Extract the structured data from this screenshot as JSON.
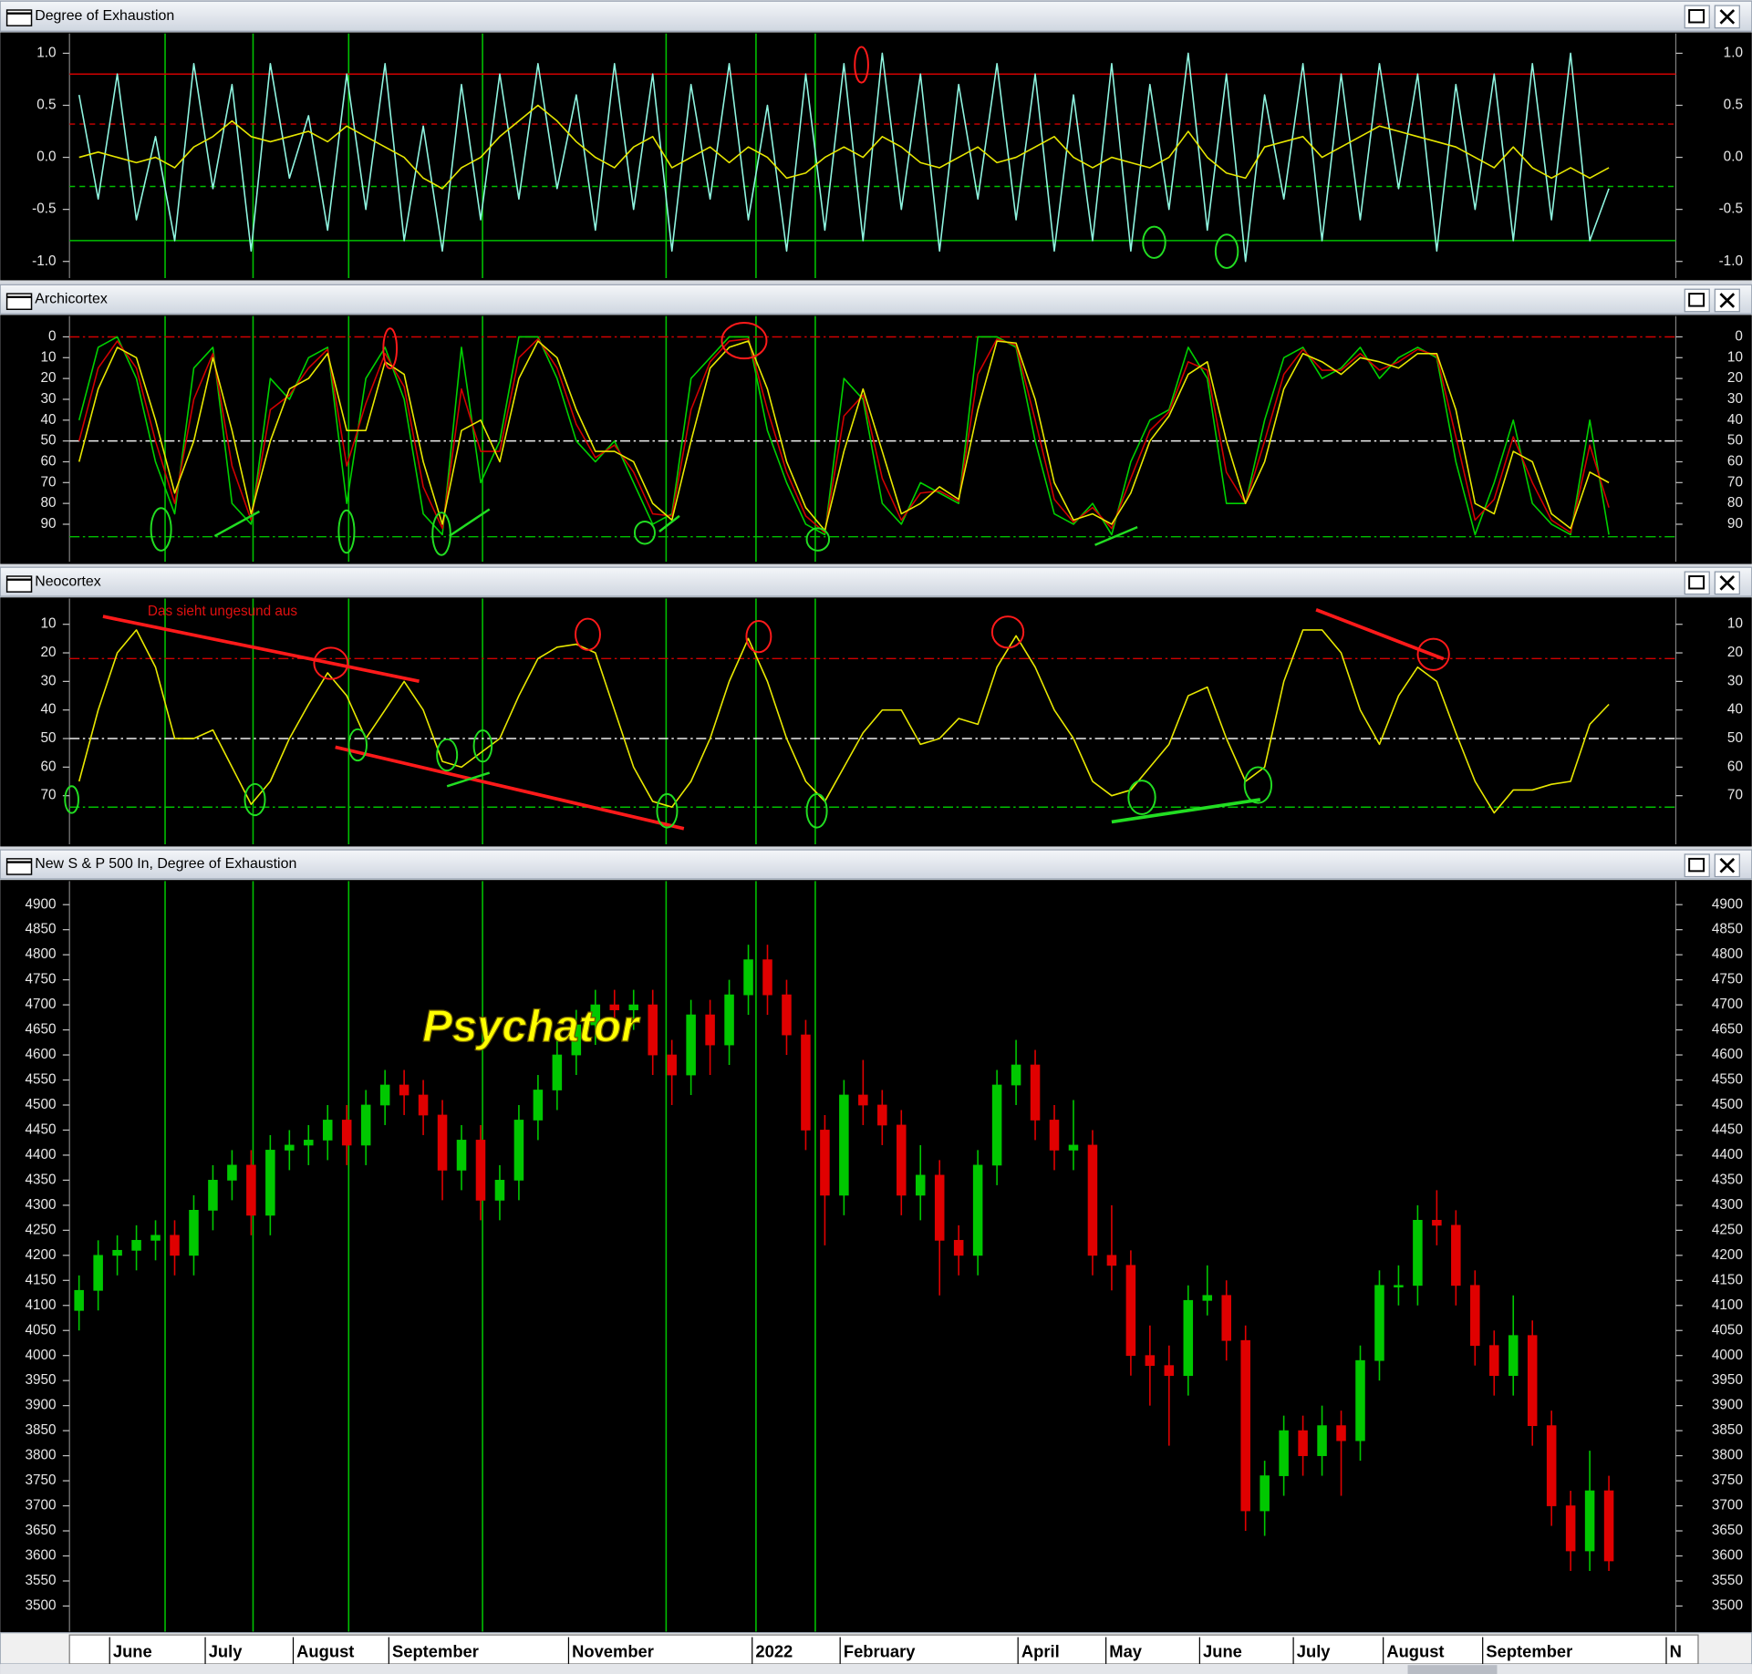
{
  "chart_data": [
    {
      "type": "line",
      "title": "Degree of Exhaustion",
      "xlim": [
        0,
        84
      ],
      "ylim": [
        -1.16,
        1.19
      ],
      "yticks": [
        {
          "value": 1,
          "label": "1.0"
        },
        0.5,
        {
          "value": 0,
          "label": "0.0"
        },
        -0.5,
        {
          "value": -1,
          "label": "-1.0"
        }
      ],
      "reference_lines": [
        {
          "value": 0.8,
          "color": "#d00000",
          "style": "solid"
        },
        {
          "value": 0.32,
          "color": "#d00000",
          "style": "dash"
        },
        {
          "value": -0.28,
          "color": "#00c000",
          "style": "dash"
        },
        {
          "value": -0.8,
          "color": "#00c000",
          "style": "solid"
        }
      ],
      "series": [
        {
          "color": "#8ff5e0",
          "values": [
            0.6,
            -0.4,
            0.8,
            -0.6,
            0.2,
            -0.8,
            0.9,
            -0.3,
            0.7,
            -0.9,
            0.9,
            -0.2,
            0.4,
            -0.7,
            0.8,
            -0.5,
            0.9,
            -0.8,
            0.3,
            -0.9,
            0.7,
            -0.6,
            0.8,
            -0.4,
            0.9,
            -0.3,
            0.6,
            -0.7,
            0.9,
            -0.5,
            0.8,
            -0.9,
            0.7,
            -0.4,
            0.9,
            -0.6,
            0.5,
            -0.9,
            0.8,
            -0.7,
            0.9,
            -0.8,
            1.0,
            -0.5,
            0.8,
            -0.9,
            0.7,
            -0.4,
            0.9,
            -0.6,
            0.8,
            -0.9,
            0.6,
            -0.8,
            0.9,
            -0.9,
            0.7,
            -0.5,
            1.0,
            -0.7,
            0.8,
            -1.0,
            0.6,
            -0.4,
            0.9,
            -0.8,
            0.8,
            -0.6,
            0.9,
            -0.3,
            0.8,
            -0.9,
            0.7,
            -0.5,
            0.8,
            -0.8,
            0.9,
            -0.6,
            1.0,
            -0.8,
            -0.3
          ]
        },
        {
          "color": "#e6e600",
          "values": [
            0.0,
            0.05,
            0.0,
            -0.05,
            0.0,
            -0.1,
            0.1,
            0.2,
            0.35,
            0.2,
            0.15,
            0.2,
            0.25,
            0.15,
            0.3,
            0.2,
            0.1,
            0.0,
            -0.2,
            -0.3,
            -0.1,
            0.0,
            0.2,
            0.35,
            0.5,
            0.35,
            0.15,
            0.0,
            -0.1,
            0.1,
            0.2,
            -0.1,
            0.0,
            0.1,
            -0.05,
            0.1,
            0.0,
            -0.2,
            -0.15,
            0.0,
            0.1,
            0.0,
            0.2,
            0.1,
            -0.05,
            -0.1,
            0.0,
            0.1,
            -0.05,
            0.0,
            0.1,
            0.2,
            0.0,
            -0.1,
            0.0,
            -0.05,
            -0.1,
            0.0,
            0.25,
            0.0,
            -0.15,
            -0.2,
            0.1,
            0.15,
            0.2,
            0.0,
            0.1,
            0.2,
            0.3,
            0.25,
            0.2,
            0.15,
            0.1,
            0.0,
            -0.1,
            0.1,
            -0.1,
            -0.2,
            -0.1,
            -0.2,
            -0.1
          ]
        }
      ]
    },
    {
      "type": "line",
      "title": "Archicortex",
      "xlim": [
        0,
        84
      ],
      "ylim": [
        108,
        -10
      ],
      "yticks": [
        0,
        10,
        20,
        30,
        40,
        50,
        60,
        70,
        80,
        90
      ],
      "reference_lines": [
        {
          "value": 0,
          "color": "#d00000",
          "style": "dashdot"
        },
        {
          "value": 50,
          "color": "#f0f0f0",
          "style": "dashdot"
        },
        {
          "value": 96,
          "color": "#00c000",
          "style": "dashdot"
        }
      ],
      "series": [
        {
          "color": "#00d000",
          "values": [
            40,
            5,
            0,
            20,
            60,
            85,
            15,
            5,
            80,
            90,
            20,
            30,
            10,
            5,
            80,
            20,
            5,
            30,
            85,
            95,
            5,
            70,
            50,
            0,
            0,
            20,
            50,
            60,
            50,
            70,
            90,
            85,
            20,
            10,
            0,
            0,
            45,
            70,
            90,
            95,
            20,
            30,
            80,
            90,
            70,
            75,
            80,
            0,
            0,
            5,
            50,
            85,
            90,
            80,
            95,
            60,
            40,
            35,
            5,
            20,
            80,
            80,
            40,
            10,
            5,
            20,
            15,
            5,
            20,
            10,
            5,
            10,
            60,
            95,
            70,
            40,
            80,
            90,
            95,
            40,
            95
          ]
        },
        {
          "color": "#d00000",
          "values": [
            50,
            15,
            2,
            15,
            50,
            80,
            30,
            8,
            62,
            88,
            35,
            28,
            15,
            6,
            62,
            32,
            8,
            24,
            72,
            92,
            25,
            55,
            55,
            10,
            1,
            15,
            42,
            58,
            52,
            65,
            85,
            86,
            35,
            12,
            2,
            1,
            35,
            65,
            86,
            94,
            38,
            28,
            68,
            88,
            75,
            74,
            79,
            18,
            1,
            4,
            40,
            78,
            89,
            82,
            92,
            68,
            45,
            36,
            12,
            16,
            65,
            80,
            50,
            18,
            6,
            16,
            16,
            8,
            16,
            12,
            6,
            9,
            48,
            88,
            78,
            48,
            70,
            88,
            94,
            52,
            82
          ]
        },
        {
          "color": "#e8e800",
          "values": [
            60,
            25,
            5,
            10,
            40,
            75,
            50,
            10,
            45,
            85,
            50,
            25,
            20,
            8,
            45,
            45,
            12,
            18,
            60,
            90,
            45,
            40,
            60,
            20,
            2,
            10,
            35,
            55,
            55,
            60,
            80,
            88,
            50,
            15,
            5,
            2,
            25,
            60,
            82,
            93,
            55,
            25,
            55,
            85,
            80,
            72,
            78,
            35,
            2,
            3,
            30,
            70,
            88,
            85,
            90,
            75,
            50,
            38,
            18,
            12,
            50,
            80,
            60,
            25,
            8,
            12,
            18,
            10,
            12,
            15,
            8,
            8,
            35,
            80,
            85,
            55,
            60,
            85,
            92,
            65,
            70
          ]
        }
      ]
    },
    {
      "type": "line",
      "title": "Neocortex",
      "annotation": "Das sieht ungesund aus",
      "xlim": [
        0,
        84
      ],
      "ylim": [
        87,
        1
      ],
      "yticks": [
        10,
        20,
        30,
        40,
        50,
        60,
        70
      ],
      "reference_lines": [
        {
          "value": 22,
          "color": "#d00000",
          "style": "dashdot"
        },
        {
          "value": 50,
          "color": "#f0f0f0",
          "style": "dashdot"
        },
        {
          "value": 74,
          "color": "#00c000",
          "style": "dashdot"
        }
      ],
      "series": [
        {
          "color": "#e8e800",
          "values": [
            65,
            40,
            20,
            12,
            25,
            50,
            50,
            47,
            60,
            73,
            65,
            50,
            38,
            27,
            35,
            50,
            40,
            30,
            40,
            58,
            60,
            55,
            50,
            35,
            22,
            18,
            17,
            20,
            40,
            60,
            72,
            74,
            65,
            50,
            30,
            15,
            30,
            50,
            65,
            72,
            60,
            48,
            40,
            40,
            52,
            50,
            43,
            45,
            25,
            14,
            25,
            40,
            50,
            65,
            70,
            68,
            60,
            52,
            35,
            32,
            50,
            65,
            60,
            30,
            12,
            12,
            20,
            40,
            52,
            35,
            25,
            30,
            48,
            65,
            76,
            68,
            68,
            66,
            65,
            45,
            38
          ]
        }
      ]
    },
    {
      "type": "candlestick",
      "title": "New S & P 500 In, Degree of Exhaustion",
      "annotation": "Psychator",
      "xlim": [
        0,
        84
      ],
      "ylim": [
        3449,
        4947
      ],
      "yticks": [
        3500,
        3550,
        3600,
        3650,
        3700,
        3750,
        3800,
        3850,
        3900,
        3950,
        4000,
        4050,
        4100,
        4150,
        4200,
        4250,
        4300,
        4350,
        4400,
        4450,
        4500,
        4550,
        4600,
        4650,
        4700,
        4750,
        4800,
        4850,
        4900
      ],
      "xticks": [
        {
          "value": 2.1,
          "label": "June"
        },
        {
          "value": 7.1,
          "label": "July"
        },
        {
          "value": 11.7,
          "label": "August"
        },
        {
          "value": 16.7,
          "label": "September"
        },
        {
          "value": 26.1,
          "label": "November"
        },
        {
          "value": 35.7,
          "label": "2022"
        },
        {
          "value": 40.3,
          "label": "February"
        },
        {
          "value": 49.6,
          "label": "April"
        },
        {
          "value": 54.2,
          "label": "May"
        },
        {
          "value": 59.1,
          "label": "June"
        },
        {
          "value": 64.0,
          "label": "July"
        },
        {
          "value": 68.7,
          "label": "August"
        },
        {
          "value": 73.9,
          "label": "September"
        },
        {
          "value": 83.5,
          "label": "N"
        }
      ],
      "vertical_lines": [
        5.0,
        9.6,
        14.6,
        21.6,
        31.2,
        35.9,
        39.0
      ],
      "vertical_line_color": "#00c000",
      "up_color": "#00c800",
      "down_color": "#e00000",
      "open": [
        4090,
        4130,
        4200,
        4210,
        4230,
        4240,
        4200,
        4290,
        4350,
        4380,
        4280,
        4410,
        4420,
        4430,
        4470,
        4420,
        4500,
        4540,
        4520,
        4480,
        4370,
        4430,
        4310,
        4350,
        4470,
        4530,
        4600,
        4660,
        4700,
        4690,
        4700,
        4600,
        4560,
        4680,
        4620,
        4720,
        4790,
        4720,
        4640,
        4450,
        4320,
        4520,
        4500,
        4460,
        4320,
        4360,
        4230,
        4200,
        4380,
        4540,
        4580,
        4470,
        4410,
        4420,
        4200,
        4180,
        4000,
        3980,
        3960,
        4110,
        4120,
        4030,
        3690,
        3760,
        3850,
        3800,
        3860,
        3830,
        3990,
        4140,
        4140,
        4270,
        4260,
        4140,
        4020,
        3960,
        4040,
        3860,
        3700,
        3610,
        3730
      ],
      "high": [
        4160,
        4230,
        4240,
        4260,
        4270,
        4270,
        4320,
        4380,
        4410,
        4410,
        4440,
        4450,
        4460,
        4500,
        4500,
        4530,
        4570,
        4570,
        4550,
        4510,
        4460,
        4460,
        4380,
        4500,
        4560,
        4630,
        4690,
        4730,
        4730,
        4730,
        4730,
        4630,
        4710,
        4710,
        4750,
        4820,
        4820,
        4750,
        4670,
        4480,
        4550,
        4590,
        4530,
        4490,
        4420,
        4390,
        4260,
        4410,
        4570,
        4630,
        4610,
        4500,
        4510,
        4450,
        4300,
        4210,
        4060,
        4020,
        4140,
        4180,
        4150,
        4060,
        3790,
        3880,
        3880,
        3900,
        3890,
        4020,
        4170,
        4180,
        4300,
        4330,
        4290,
        4170,
        4050,
        4120,
        4070,
        3890,
        3730,
        3810,
        3760
      ],
      "low": [
        4050,
        4090,
        4160,
        4170,
        4190,
        4160,
        4160,
        4250,
        4310,
        4240,
        4240,
        4370,
        4380,
        4390,
        4380,
        4380,
        4460,
        4480,
        4440,
        4310,
        4330,
        4270,
        4270,
        4310,
        4430,
        4490,
        4560,
        4620,
        4650,
        4650,
        4560,
        4500,
        4520,
        4560,
        4580,
        4680,
        4680,
        4600,
        4410,
        4220,
        4280,
        4460,
        4420,
        4280,
        4270,
        4120,
        4160,
        4160,
        4340,
        4500,
        4430,
        4370,
        4370,
        4160,
        4130,
        3960,
        3900,
        3820,
        3920,
        4080,
        3990,
        3650,
        3640,
        3720,
        3760,
        3760,
        3720,
        3790,
        3950,
        4100,
        4100,
        4220,
        4100,
        3980,
        3920,
        3920,
        3820,
        3660,
        3570,
        3570,
        3570
      ],
      "close": [
        4130,
        4200,
        4210,
        4230,
        4240,
        4200,
        4290,
        4350,
        4380,
        4280,
        4410,
        4420,
        4430,
        4470,
        4420,
        4500,
        4540,
        4520,
        4480,
        4370,
        4430,
        4310,
        4350,
        4470,
        4530,
        4600,
        4660,
        4700,
        4690,
        4700,
        4600,
        4560,
        4680,
        4620,
        4720,
        4790,
        4720,
        4640,
        4450,
        4320,
        4520,
        4500,
        4460,
        4320,
        4360,
        4230,
        4200,
        4380,
        4540,
        4580,
        4470,
        4410,
        4420,
        4200,
        4180,
        4000,
        3980,
        3960,
        4110,
        4120,
        4030,
        3690,
        3760,
        3850,
        3800,
        3860,
        3830,
        3990,
        4140,
        4140,
        4270,
        4260,
        4140,
        4020,
        3960,
        4040,
        3860,
        3700,
        3610,
        3730,
        3590
      ]
    }
  ]
}
